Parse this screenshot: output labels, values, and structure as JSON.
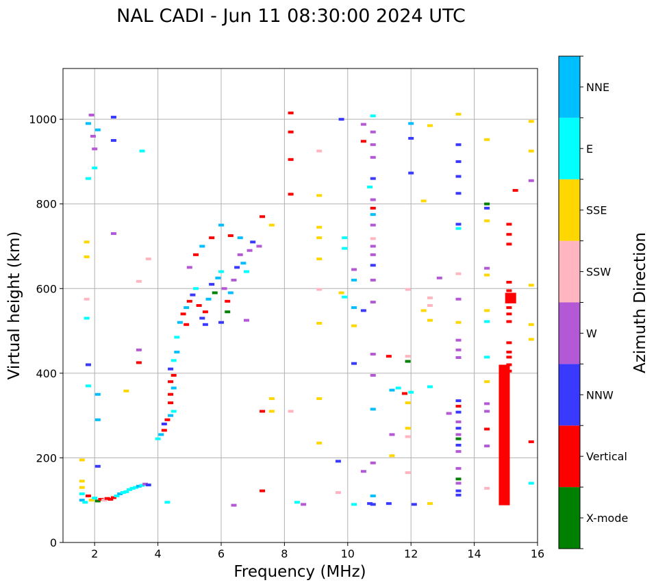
{
  "chart_data": {
    "type": "scatter",
    "title": "NAL CADI - Jun 11 08:30:00 2024 UTC",
    "xlabel": "Frequency (MHz)",
    "ylabel": "Virtual height (km)",
    "xlim": [
      1,
      16
    ],
    "ylim": [
      0,
      1120
    ],
    "xticks": [
      2,
      4,
      6,
      8,
      10,
      12,
      14,
      16
    ],
    "yticks": [
      0,
      200,
      400,
      600,
      800,
      1000
    ],
    "grid": true,
    "colorbar": {
      "title": "Azimuth Direction",
      "categories": [
        {
          "name": "X-mode",
          "color": "#008000"
        },
        {
          "name": "Vertical",
          "color": "#ff0000"
        },
        {
          "name": "NNW",
          "color": "#3a3aff"
        },
        {
          "name": "W",
          "color": "#b459d6"
        },
        {
          "name": "SSW",
          "color": "#ffb6c1"
        },
        {
          "name": "SSE",
          "color": "#ffd700"
        },
        {
          "name": "E",
          "color": "#00ffff"
        },
        {
          "name": "NNE",
          "color": "#00bfff"
        }
      ]
    },
    "points": [
      [
        1.6,
        100,
        "NNE"
      ],
      [
        1.6,
        115,
        "E"
      ],
      [
        1.6,
        130,
        "SSE"
      ],
      [
        1.6,
        145,
        "SSE"
      ],
      [
        1.6,
        195,
        "SSE"
      ],
      [
        1.7,
        95,
        "E"
      ],
      [
        1.8,
        110,
        "Vertical"
      ],
      [
        1.9,
        100,
        "SSE"
      ],
      [
        2.0,
        105,
        "E"
      ],
      [
        2.1,
        98,
        "X-mode"
      ],
      [
        2.2,
        102,
        "Vertical"
      ],
      [
        2.3,
        100,
        "SSW"
      ],
      [
        2.4,
        104,
        "Vertical"
      ],
      [
        2.5,
        102,
        "Vertical"
      ],
      [
        2.6,
        106,
        "Vertical"
      ],
      [
        2.7,
        110,
        "E"
      ],
      [
        2.8,
        115,
        "NNE"
      ],
      [
        2.9,
        118,
        "E"
      ],
      [
        3.0,
        120,
        "E"
      ],
      [
        3.1,
        125,
        "E"
      ],
      [
        3.2,
        128,
        "E"
      ],
      [
        3.3,
        130,
        "E"
      ],
      [
        3.4,
        133,
        "NNE"
      ],
      [
        3.5,
        135,
        "E"
      ],
      [
        3.6,
        138,
        "W"
      ],
      [
        3.7,
        136,
        "NNW"
      ],
      [
        1.8,
        990,
        "NNE"
      ],
      [
        1.9,
        1010,
        "W"
      ],
      [
        1.95,
        960,
        "W"
      ],
      [
        2.0,
        930,
        "W"
      ],
      [
        2.1,
        975,
        "NNE"
      ],
      [
        2.6,
        1005,
        "NNW"
      ],
      [
        2.6,
        950,
        "NNW"
      ],
      [
        3.5,
        925,
        "E"
      ],
      [
        2.0,
        885,
        "E"
      ],
      [
        1.8,
        860,
        "E"
      ],
      [
        1.75,
        710,
        "SSE"
      ],
      [
        1.75,
        675,
        "SSE"
      ],
      [
        1.75,
        575,
        "SSW"
      ],
      [
        1.75,
        530,
        "E"
      ],
      [
        1.8,
        420,
        "NNW"
      ],
      [
        1.8,
        370,
        "E"
      ],
      [
        2.1,
        350,
        "NNE"
      ],
      [
        2.1,
        290,
        "NNE"
      ],
      [
        2.1,
        180,
        "NNW"
      ],
      [
        3.0,
        358,
        "SSE"
      ],
      [
        3.4,
        425,
        "Vertical"
      ],
      [
        3.4,
        455,
        "W"
      ],
      [
        3.4,
        617,
        "SSW"
      ],
      [
        3.7,
        670,
        "SSW"
      ],
      [
        2.6,
        730,
        "W"
      ],
      [
        4.3,
        95,
        "E"
      ],
      [
        4.0,
        245,
        "E"
      ],
      [
        4.1,
        255,
        "NNE"
      ],
      [
        4.2,
        265,
        "Vertical"
      ],
      [
        4.2,
        280,
        "NNW"
      ],
      [
        4.3,
        290,
        "Vertical"
      ],
      [
        4.4,
        300,
        "NNE"
      ],
      [
        4.5,
        310,
        "E"
      ],
      [
        4.4,
        330,
        "Vertical"
      ],
      [
        4.4,
        350,
        "Vertical"
      ],
      [
        4.5,
        365,
        "NNE"
      ],
      [
        4.4,
        380,
        "Vertical"
      ],
      [
        4.5,
        395,
        "Vertical"
      ],
      [
        4.4,
        410,
        "NNW"
      ],
      [
        4.5,
        430,
        "E"
      ],
      [
        4.6,
        450,
        "NNE"
      ],
      [
        4.6,
        485,
        "E"
      ],
      [
        4.7,
        520,
        "NNE"
      ],
      [
        4.8,
        540,
        "Vertical"
      ],
      [
        4.9,
        555,
        "NNE"
      ],
      [
        5.0,
        570,
        "Vertical"
      ],
      [
        5.1,
        585,
        "NNW"
      ],
      [
        5.2,
        600,
        "E"
      ],
      [
        5.3,
        560,
        "Vertical"
      ],
      [
        5.4,
        530,
        "NNW"
      ],
      [
        5.5,
        545,
        "Vertical"
      ],
      [
        5.6,
        575,
        "NNE"
      ],
      [
        5.7,
        610,
        "NNW"
      ],
      [
        5.8,
        590,
        "X-mode"
      ],
      [
        5.9,
        625,
        "NNE"
      ],
      [
        6.0,
        640,
        "E"
      ],
      [
        6.1,
        600,
        "W"
      ],
      [
        6.2,
        570,
        "Vertical"
      ],
      [
        6.3,
        590,
        "NNE"
      ],
      [
        6.4,
        620,
        "W"
      ],
      [
        6.5,
        650,
        "NNW"
      ],
      [
        6.6,
        680,
        "W"
      ],
      [
        6.7,
        660,
        "NNE"
      ],
      [
        6.8,
        640,
        "E"
      ],
      [
        6.9,
        690,
        "W"
      ],
      [
        7.0,
        710,
        "NNW"
      ],
      [
        7.2,
        700,
        "W"
      ],
      [
        5.0,
        650,
        "W"
      ],
      [
        5.2,
        680,
        "Vertical"
      ],
      [
        5.4,
        700,
        "NNE"
      ],
      [
        5.7,
        720,
        "Vertical"
      ],
      [
        6.0,
        750,
        "NNE"
      ],
      [
        6.3,
        725,
        "Vertical"
      ],
      [
        6.6,
        720,
        "NNE"
      ],
      [
        7.3,
        770,
        "Vertical"
      ],
      [
        4.9,
        515,
        "Vertical"
      ],
      [
        5.5,
        515,
        "NNW"
      ],
      [
        6.0,
        520,
        "NNW"
      ],
      [
        6.2,
        545,
        "X-mode"
      ],
      [
        6.8,
        525,
        "W"
      ],
      [
        7.6,
        750,
        "SSE"
      ],
      [
        7.3,
        310,
        "Vertical"
      ],
      [
        7.6,
        340,
        "SSE"
      ],
      [
        7.6,
        310,
        "SSE"
      ],
      [
        6.4,
        88,
        "W"
      ],
      [
        7.3,
        122,
        "Vertical"
      ],
      [
        8.2,
        1015,
        "Vertical"
      ],
      [
        8.2,
        970,
        "Vertical"
      ],
      [
        8.2,
        905,
        "Vertical"
      ],
      [
        8.2,
        823,
        "Vertical"
      ],
      [
        8.2,
        310,
        "SSW"
      ],
      [
        8.4,
        95,
        "E"
      ],
      [
        8.6,
        90,
        "W"
      ],
      [
        9.1,
        925,
        "SSW"
      ],
      [
        9.1,
        820,
        "SSE"
      ],
      [
        9.1,
        745,
        "SSE"
      ],
      [
        9.1,
        720,
        "SSE"
      ],
      [
        9.1,
        670,
        "SSE"
      ],
      [
        9.1,
        598,
        "SSW"
      ],
      [
        9.1,
        518,
        "SSE"
      ],
      [
        9.1,
        340,
        "SSE"
      ],
      [
        9.1,
        235,
        "SSE"
      ],
      [
        9.7,
        192,
        "NNW"
      ],
      [
        9.7,
        118,
        "SSW"
      ],
      [
        9.8,
        1000,
        "NNW"
      ],
      [
        9.9,
        720,
        "E"
      ],
      [
        9.9,
        695,
        "E"
      ],
      [
        9.8,
        590,
        "SSE"
      ],
      [
        9.9,
        580,
        "E"
      ],
      [
        10.2,
        645,
        "W"
      ],
      [
        10.2,
        620,
        "NNE"
      ],
      [
        10.2,
        555,
        "NNE"
      ],
      [
        10.2,
        512,
        "SSE"
      ],
      [
        10.2,
        423,
        "NNW"
      ],
      [
        10.2,
        90,
        "E"
      ],
      [
        10.5,
        988,
        "W"
      ],
      [
        10.5,
        948,
        "Vertical"
      ],
      [
        10.5,
        548,
        "NNW"
      ],
      [
        10.5,
        168,
        "W"
      ],
      [
        10.7,
        92,
        "NNW"
      ],
      [
        10.7,
        840,
        "E"
      ],
      [
        10.8,
        1008,
        "E"
      ],
      [
        10.8,
        970,
        "W"
      ],
      [
        10.8,
        940,
        "W"
      ],
      [
        10.8,
        910,
        "W"
      ],
      [
        10.8,
        860,
        "NNW"
      ],
      [
        10.8,
        810,
        "W"
      ],
      [
        10.8,
        790,
        "Vertical"
      ],
      [
        10.8,
        775,
        "NNE"
      ],
      [
        10.8,
        750,
        "W"
      ],
      [
        10.8,
        718,
        "SSW"
      ],
      [
        10.8,
        700,
        "W"
      ],
      [
        10.8,
        680,
        "W"
      ],
      [
        10.8,
        655,
        "NNW"
      ],
      [
        10.8,
        620,
        "W"
      ],
      [
        10.8,
        568,
        "W"
      ],
      [
        10.8,
        445,
        "W"
      ],
      [
        10.8,
        395,
        "W"
      ],
      [
        10.8,
        315,
        "NNE"
      ],
      [
        10.8,
        188,
        "W"
      ],
      [
        10.8,
        110,
        "NNE"
      ],
      [
        10.8,
        90,
        "NNW"
      ],
      [
        11.3,
        92,
        "NNW"
      ],
      [
        11.3,
        440,
        "Vertical"
      ],
      [
        11.4,
        360,
        "NNE"
      ],
      [
        11.4,
        255,
        "W"
      ],
      [
        11.4,
        205,
        "SSE"
      ],
      [
        11.6,
        365,
        "E"
      ],
      [
        11.8,
        352,
        "Vertical"
      ],
      [
        11.9,
        440,
        "SSW"
      ],
      [
        11.9,
        428,
        "X-mode"
      ],
      [
        11.9,
        330,
        "SSE"
      ],
      [
        11.9,
        270,
        "SSE"
      ],
      [
        11.9,
        250,
        "SSW"
      ],
      [
        11.9,
        165,
        "SSW"
      ],
      [
        11.9,
        598,
        "SSW"
      ],
      [
        12.0,
        990,
        "NNE"
      ],
      [
        12.0,
        955,
        "NNW"
      ],
      [
        12.0,
        873,
        "NNW"
      ],
      [
        12.0,
        355,
        "E"
      ],
      [
        12.1,
        90,
        "NNW"
      ],
      [
        12.4,
        807,
        "SSE"
      ],
      [
        12.4,
        548,
        "SSE"
      ],
      [
        12.6,
        985,
        "SSE"
      ],
      [
        12.6,
        578,
        "SSW"
      ],
      [
        12.6,
        560,
        "SSW"
      ],
      [
        12.6,
        525,
        "SSE"
      ],
      [
        12.6,
        368,
        "E"
      ],
      [
        12.6,
        92,
        "SSE"
      ],
      [
        12.9,
        625,
        "W"
      ],
      [
        13.2,
        305,
        "W"
      ],
      [
        13.5,
        1012,
        "SSE"
      ],
      [
        13.5,
        940,
        "NNW"
      ],
      [
        13.5,
        900,
        "NNW"
      ],
      [
        13.5,
        865,
        "NNW"
      ],
      [
        13.5,
        825,
        "NNW"
      ],
      [
        13.5,
        752,
        "NNW"
      ],
      [
        13.5,
        742,
        "E"
      ],
      [
        13.5,
        635,
        "SSW"
      ],
      [
        13.5,
        575,
        "W"
      ],
      [
        13.5,
        520,
        "SSE"
      ],
      [
        13.5,
        478,
        "W"
      ],
      [
        13.5,
        455,
        "W"
      ],
      [
        13.5,
        437,
        "W"
      ],
      [
        13.5,
        335,
        "NNW"
      ],
      [
        13.5,
        322,
        "Vertical"
      ],
      [
        13.5,
        308,
        "NNW"
      ],
      [
        13.5,
        285,
        "W"
      ],
      [
        13.5,
        270,
        "NNW"
      ],
      [
        13.5,
        255,
        "W"
      ],
      [
        13.5,
        245,
        "X-mode"
      ],
      [
        13.5,
        230,
        "NNW"
      ],
      [
        13.5,
        215,
        "W"
      ],
      [
        13.5,
        175,
        "W"
      ],
      [
        13.5,
        150,
        "X-mode"
      ],
      [
        13.5,
        140,
        "W"
      ],
      [
        13.5,
        122,
        "NNW"
      ],
      [
        13.5,
        112,
        "NNW"
      ],
      [
        14.4,
        952,
        "SSE"
      ],
      [
        14.4,
        800,
        "X-mode"
      ],
      [
        14.4,
        790,
        "NNW"
      ],
      [
        14.4,
        760,
        "SSE"
      ],
      [
        14.4,
        648,
        "W"
      ],
      [
        14.4,
        632,
        "SSE"
      ],
      [
        14.4,
        548,
        "SSE"
      ],
      [
        14.4,
        522,
        "E"
      ],
      [
        14.4,
        438,
        "E"
      ],
      [
        14.4,
        380,
        "SSE"
      ],
      [
        14.4,
        328,
        "W"
      ],
      [
        14.4,
        310,
        "W"
      ],
      [
        14.4,
        268,
        "Vertical"
      ],
      [
        14.4,
        228,
        "W"
      ],
      [
        14.4,
        128,
        "SSW"
      ],
      [
        15.3,
        832,
        "Vertical"
      ],
      [
        15.1,
        752,
        "Vertical"
      ],
      [
        15.1,
        728,
        "Vertical"
      ],
      [
        15.1,
        705,
        "Vertical"
      ],
      [
        15.1,
        615,
        "Vertical"
      ],
      [
        15.1,
        595,
        "Vertical"
      ],
      [
        15.1,
        575,
        "Vertical"
      ],
      [
        15.1,
        555,
        "Vertical"
      ],
      [
        15.1,
        540,
        "Vertical"
      ],
      [
        15.1,
        522,
        "Vertical"
      ],
      [
        15.1,
        472,
        "Vertical"
      ],
      [
        15.1,
        450,
        "Vertical"
      ],
      [
        15.1,
        438,
        "Vertical"
      ],
      [
        15.1,
        420,
        "Vertical"
      ],
      [
        15.1,
        405,
        "Vertical"
      ],
      [
        15.8,
        995,
        "SSE"
      ],
      [
        15.8,
        925,
        "SSE"
      ],
      [
        15.8,
        855,
        "W"
      ],
      [
        15.8,
        608,
        "SSE"
      ],
      [
        15.8,
        515,
        "SSE"
      ],
      [
        15.8,
        480,
        "SSE"
      ],
      [
        15.8,
        238,
        "Vertical"
      ],
      [
        15.8,
        140,
        "E"
      ]
    ],
    "bars": [
      {
        "x": 14.95,
        "y0": 88,
        "y1": 420,
        "category": "Vertical"
      },
      {
        "x": 15.15,
        "y0": 565,
        "y1": 590,
        "category": "Vertical"
      }
    ]
  }
}
